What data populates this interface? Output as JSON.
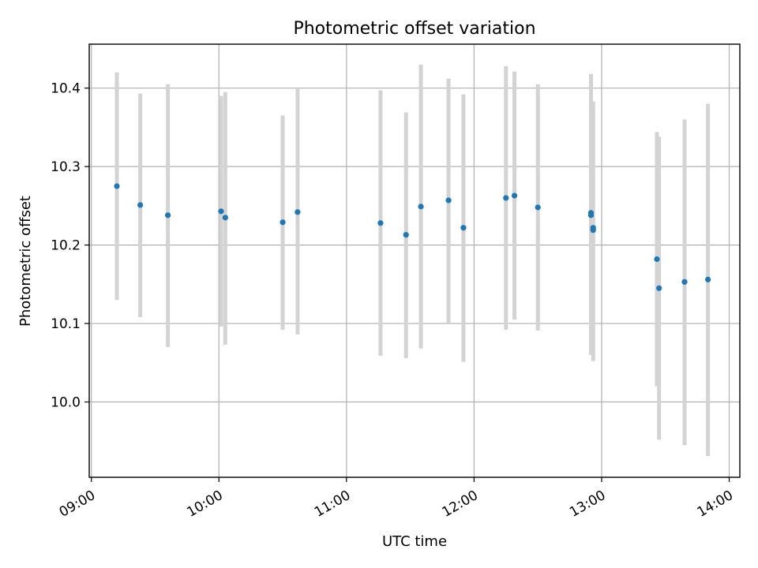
{
  "chart_data": {
    "type": "scatter",
    "title": "Photometric offset variation",
    "xlabel": "UTC time",
    "ylabel": "Photometric offset",
    "xlim": [
      "08:59",
      "14:05"
    ],
    "ylim": [
      9.904,
      10.456
    ],
    "xticks": [
      "09:00",
      "10:00",
      "11:00",
      "12:00",
      "13:00",
      "14:00"
    ],
    "yticks": [
      "10.0",
      "10.1",
      "10.2",
      "10.3",
      "10.4"
    ],
    "grid": true,
    "colors": {
      "points": "#1f77b4",
      "errorbars": "#d3d3d3"
    },
    "points": [
      {
        "x": "09:12",
        "y": 10.275,
        "ylow": 10.13,
        "yhigh": 10.42
      },
      {
        "x": "09:23",
        "y": 10.251,
        "ylow": 10.108,
        "yhigh": 10.393
      },
      {
        "x": "09:36",
        "y": 10.238,
        "ylow": 10.07,
        "yhigh": 10.405
      },
      {
        "x": "10:01",
        "y": 10.243,
        "ylow": 10.096,
        "yhigh": 10.39
      },
      {
        "x": "10:03",
        "y": 10.235,
        "ylow": 10.073,
        "yhigh": 10.395
      },
      {
        "x": "10:30",
        "y": 10.229,
        "ylow": 10.092,
        "yhigh": 10.365
      },
      {
        "x": "10:37",
        "y": 10.242,
        "ylow": 10.086,
        "yhigh": 10.399
      },
      {
        "x": "11:16",
        "y": 10.228,
        "ylow": 10.059,
        "yhigh": 10.397
      },
      {
        "x": "11:28",
        "y": 10.213,
        "ylow": 10.056,
        "yhigh": 10.369
      },
      {
        "x": "11:35",
        "y": 10.249,
        "ylow": 10.068,
        "yhigh": 10.43
      },
      {
        "x": "11:48",
        "y": 10.257,
        "ylow": 10.101,
        "yhigh": 10.412
      },
      {
        "x": "11:55",
        "y": 10.222,
        "ylow": 10.051,
        "yhigh": 10.392
      },
      {
        "x": "12:15",
        "y": 10.26,
        "ylow": 10.092,
        "yhigh": 10.428
      },
      {
        "x": "12:19",
        "y": 10.263,
        "ylow": 10.105,
        "yhigh": 10.421
      },
      {
        "x": "12:30",
        "y": 10.248,
        "ylow": 10.091,
        "yhigh": 10.405
      },
      {
        "x": "12:55",
        "y": 10.238,
        "ylow": 10.06,
        "yhigh": 10.417
      },
      {
        "x": "12:55",
        "y": 10.241,
        "ylow": 10.062,
        "yhigh": 10.418
      },
      {
        "x": "12:56",
        "y": 10.219,
        "ylow": 10.052,
        "yhigh": 10.383
      },
      {
        "x": "12:56",
        "y": 10.222,
        "ylow": 10.063,
        "yhigh": 10.382
      },
      {
        "x": "13:26",
        "y": 10.182,
        "ylow": 10.02,
        "yhigh": 10.344
      },
      {
        "x": "13:27",
        "y": 10.145,
        "ylow": 9.952,
        "yhigh": 10.338
      },
      {
        "x": "13:39",
        "y": 10.153,
        "ylow": 9.945,
        "yhigh": 10.36
      },
      {
        "x": "13:50",
        "y": 10.156,
        "ylow": 9.931,
        "yhigh": 10.38
      }
    ]
  }
}
